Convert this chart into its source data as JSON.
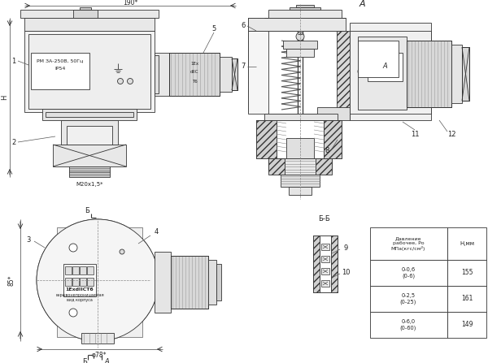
{
  "bg_color": "#ffffff",
  "line_color": "#333333",
  "fig_width": 6.0,
  "fig_height": 4.47,
  "dpi": 100,
  "table_rows": [
    [
      "0-0,6\n(0-6)",
      "155"
    ],
    [
      "0-2,5\n(0-25)",
      "161"
    ],
    [
      "0-6,0\n(0-60)",
      "149"
    ]
  ],
  "dim_190": "190*",
  "dim_H": "H",
  "dim_M20": "M20x1,5*",
  "dim_85": "85*",
  "dim_78": "φ78*"
}
